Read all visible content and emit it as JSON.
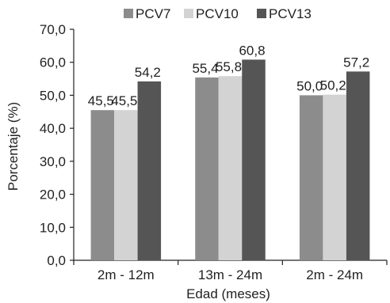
{
  "chart_data": {
    "type": "bar",
    "categories": [
      "2m - 12m",
      "13m - 24m",
      "2m - 24m"
    ],
    "series": [
      {
        "name": "PCV7",
        "values": [
          45.5,
          55.4,
          50.0
        ],
        "labels": [
          "45,5",
          "55,4",
          "50,0"
        ],
        "color": "#8c8c8c"
      },
      {
        "name": "PCV10",
        "values": [
          45.5,
          55.8,
          50.2
        ],
        "labels": [
          "45,5",
          "55,8",
          "50,2"
        ],
        "color": "#d3d3d3"
      },
      {
        "name": "PCV13",
        "values": [
          54.2,
          60.8,
          57.2
        ],
        "labels": [
          "54,2",
          "60,8",
          "57,2"
        ],
        "color": "#555555"
      }
    ],
    "xlabel": "Edad (meses)",
    "ylabel": "Porcentaje (%)",
    "ylim": [
      0,
      70
    ],
    "yticks": [
      "0,0",
      "10,0",
      "20,0",
      "30,0",
      "40,0",
      "50,0",
      "60,0",
      "70,0"
    ],
    "grid": false,
    "legend_position": "top"
  }
}
